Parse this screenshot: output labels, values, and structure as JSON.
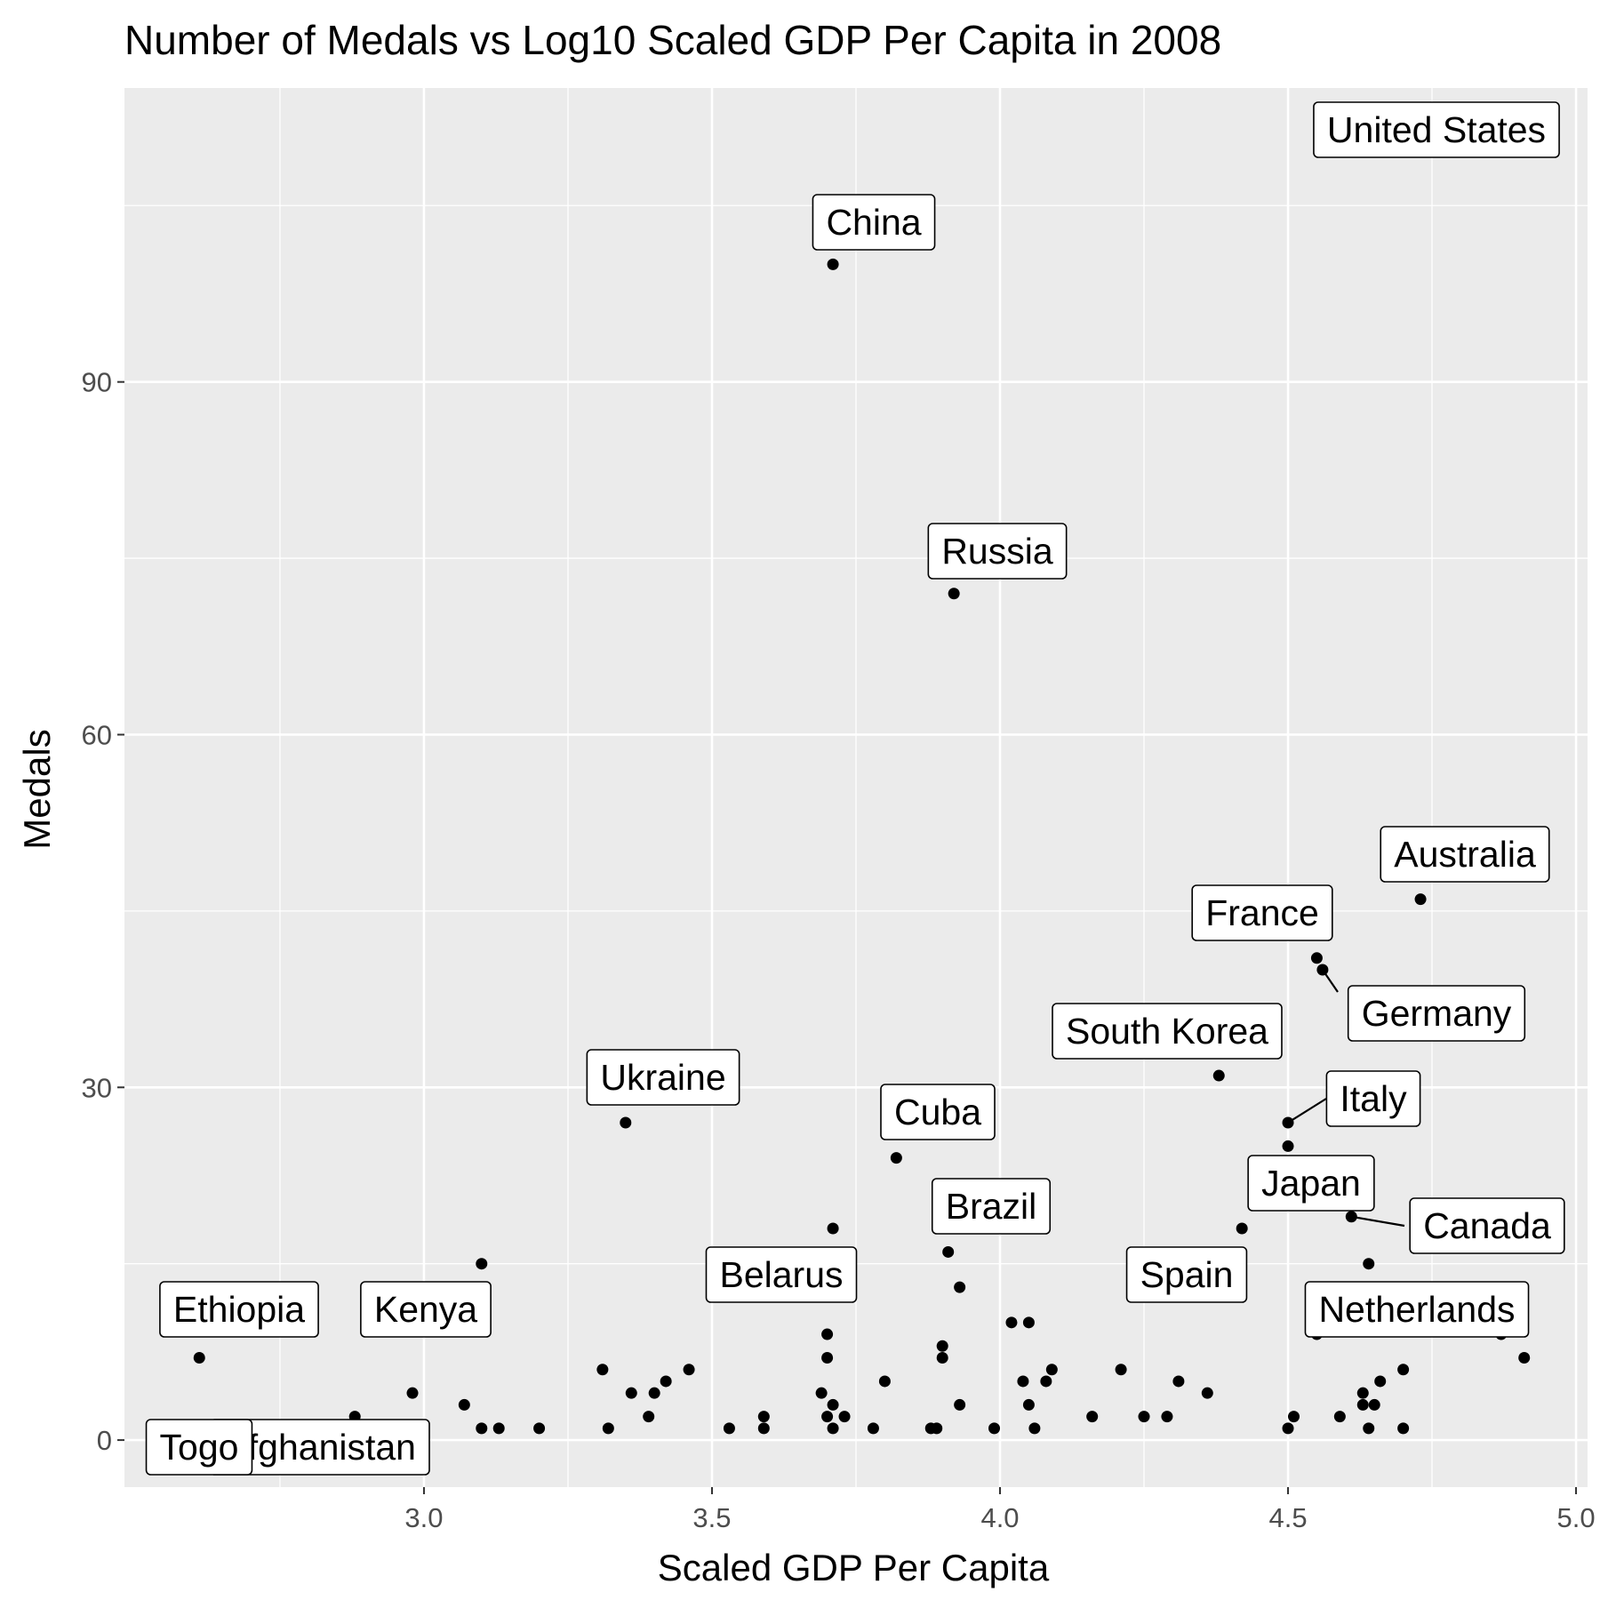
{
  "chart_data": {
    "type": "scatter",
    "title": "Number of Medals vs Log10 Scaled GDP Per Capita in  2008",
    "xlabel": "Scaled GDP Per Capita",
    "ylabel": "Medals",
    "xlim": [
      2.48,
      5.02
    ],
    "ylim": [
      -4,
      115
    ],
    "xticks": [
      3.0,
      3.5,
      4.0,
      4.5,
      5.0
    ],
    "xtick_labels": [
      "3.0",
      "3.5",
      "4.0",
      "4.5",
      "5.0"
    ],
    "yticks": [
      0,
      30,
      60,
      90
    ],
    "ytick_labels": [
      "0",
      "30",
      "60",
      "90"
    ],
    "grid": true,
    "colors": {
      "panel": "#ebebeb",
      "grid": "#ffffff",
      "point": "#000000"
    },
    "labels": [
      {
        "text": "United States",
        "x": 4.72,
        "y": 110
      },
      {
        "text": "China",
        "x": 3.71,
        "y": 100
      },
      {
        "text": "Russia",
        "x": 3.92,
        "y": 72
      },
      {
        "text": "Australia",
        "x": 4.73,
        "y": 46
      },
      {
        "text": "France",
        "x": 4.55,
        "y": 41
      },
      {
        "text": "Germany",
        "x": 4.56,
        "y": 40
      },
      {
        "text": "South Korea",
        "x": 4.38,
        "y": 31
      },
      {
        "text": "Ukraine",
        "x": 3.35,
        "y": 27
      },
      {
        "text": "Italy",
        "x": 4.5,
        "y": 27
      },
      {
        "text": "Cuba",
        "x": 3.82,
        "y": 24
      },
      {
        "text": "Japan",
        "x": 4.5,
        "y": 25
      },
      {
        "text": "Canada",
        "x": 4.61,
        "y": 19
      },
      {
        "text": "Brazil",
        "x": 3.91,
        "y": 16
      },
      {
        "text": "Belarus",
        "x": 3.71,
        "y": 18
      },
      {
        "text": "Spain",
        "x": 4.42,
        "y": 18
      },
      {
        "text": "Ethiopia",
        "x": 2.61,
        "y": 7
      },
      {
        "text": "Kenya",
        "x": 3.1,
        "y": 15
      },
      {
        "text": "Netherlands",
        "x": 4.67,
        "y": 16
      },
      {
        "text": "Togo",
        "x": 2.6,
        "y": 1
      },
      {
        "text": "Afghanistan",
        "x": 2.62,
        "y": 1
      }
    ],
    "points": [
      {
        "x": 4.72,
        "y": 110
      },
      {
        "x": 3.71,
        "y": 100
      },
      {
        "x": 3.92,
        "y": 72
      },
      {
        "x": 4.73,
        "y": 46
      },
      {
        "x": 4.55,
        "y": 41
      },
      {
        "x": 4.56,
        "y": 40
      },
      {
        "x": 4.38,
        "y": 31
      },
      {
        "x": 3.35,
        "y": 27
      },
      {
        "x": 4.5,
        "y": 27
      },
      {
        "x": 4.5,
        "y": 25
      },
      {
        "x": 3.82,
        "y": 24
      },
      {
        "x": 4.61,
        "y": 19
      },
      {
        "x": 3.71,
        "y": 18
      },
      {
        "x": 4.42,
        "y": 18
      },
      {
        "x": 3.91,
        "y": 16
      },
      {
        "x": 3.1,
        "y": 15
      },
      {
        "x": 4.64,
        "y": 15
      },
      {
        "x": 3.93,
        "y": 13
      },
      {
        "x": 4.02,
        "y": 10
      },
      {
        "x": 4.05,
        "y": 10
      },
      {
        "x": 3.7,
        "y": 9
      },
      {
        "x": 4.55,
        "y": 9
      },
      {
        "x": 4.87,
        "y": 9
      },
      {
        "x": 3.9,
        "y": 8
      },
      {
        "x": 2.61,
        "y": 7
      },
      {
        "x": 3.7,
        "y": 7
      },
      {
        "x": 3.9,
        "y": 7
      },
      {
        "x": 4.91,
        "y": 7
      },
      {
        "x": 3.31,
        "y": 6
      },
      {
        "x": 3.46,
        "y": 6
      },
      {
        "x": 4.09,
        "y": 6
      },
      {
        "x": 4.21,
        "y": 6
      },
      {
        "x": 4.7,
        "y": 6
      },
      {
        "x": 3.42,
        "y": 5
      },
      {
        "x": 3.8,
        "y": 5
      },
      {
        "x": 4.04,
        "y": 5
      },
      {
        "x": 4.08,
        "y": 5
      },
      {
        "x": 4.31,
        "y": 5
      },
      {
        "x": 4.66,
        "y": 5
      },
      {
        "x": 2.98,
        "y": 4
      },
      {
        "x": 3.36,
        "y": 4
      },
      {
        "x": 3.4,
        "y": 4
      },
      {
        "x": 3.69,
        "y": 4
      },
      {
        "x": 4.36,
        "y": 4
      },
      {
        "x": 4.63,
        "y": 4
      },
      {
        "x": 3.07,
        "y": 3
      },
      {
        "x": 3.71,
        "y": 3
      },
      {
        "x": 3.93,
        "y": 3
      },
      {
        "x": 4.05,
        "y": 3
      },
      {
        "x": 4.63,
        "y": 3
      },
      {
        "x": 4.65,
        "y": 3
      },
      {
        "x": 2.88,
        "y": 2
      },
      {
        "x": 3.39,
        "y": 2
      },
      {
        "x": 3.59,
        "y": 2
      },
      {
        "x": 3.7,
        "y": 2
      },
      {
        "x": 3.73,
        "y": 2
      },
      {
        "x": 4.16,
        "y": 2
      },
      {
        "x": 4.25,
        "y": 2
      },
      {
        "x": 4.29,
        "y": 2
      },
      {
        "x": 4.51,
        "y": 2
      },
      {
        "x": 4.59,
        "y": 2
      },
      {
        "x": 3.1,
        "y": 1
      },
      {
        "x": 3.13,
        "y": 1
      },
      {
        "x": 3.2,
        "y": 1
      },
      {
        "x": 3.32,
        "y": 1
      },
      {
        "x": 3.53,
        "y": 1
      },
      {
        "x": 3.59,
        "y": 1
      },
      {
        "x": 3.71,
        "y": 1
      },
      {
        "x": 3.78,
        "y": 1
      },
      {
        "x": 3.88,
        "y": 1
      },
      {
        "x": 3.89,
        "y": 1
      },
      {
        "x": 3.99,
        "y": 1
      },
      {
        "x": 4.06,
        "y": 1
      },
      {
        "x": 4.5,
        "y": 1
      },
      {
        "x": 4.64,
        "y": 1
      },
      {
        "x": 4.7,
        "y": 1
      }
    ]
  }
}
